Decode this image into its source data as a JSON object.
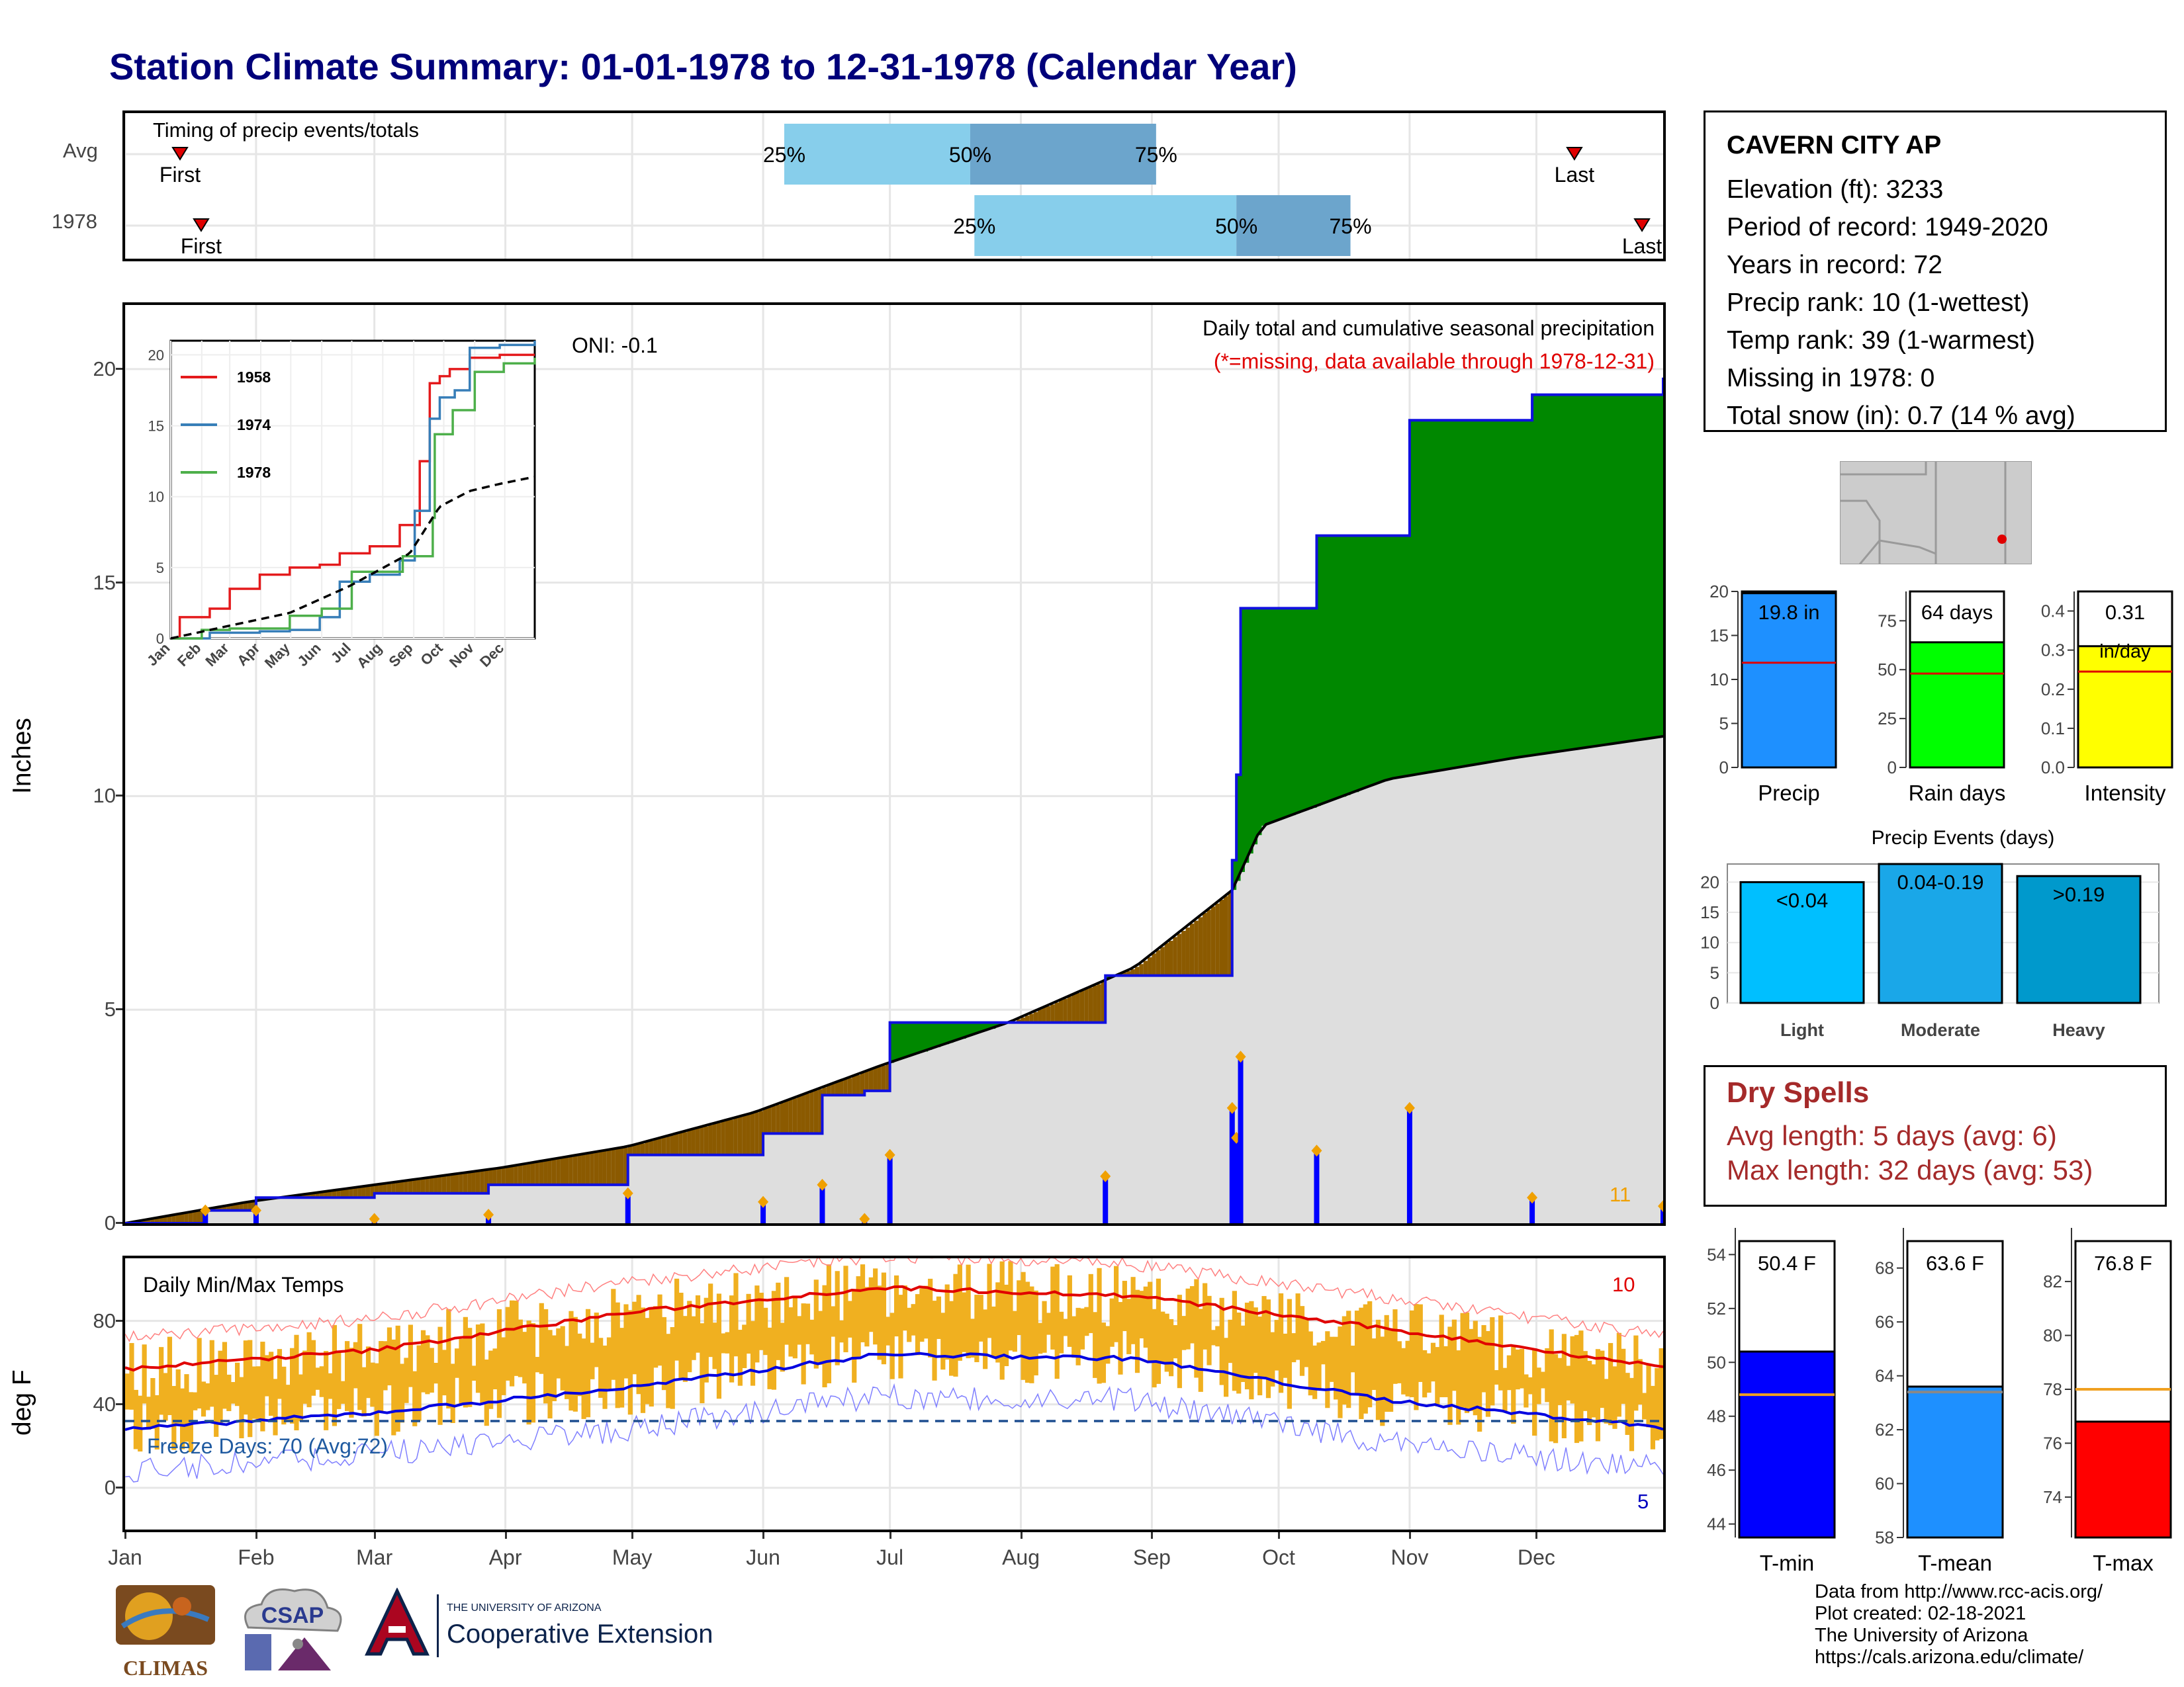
{
  "title": "Station Climate Summary: 01-01-1978 to 12-31-1978 (Calendar Year)",
  "timing_panel": {
    "label": "Timing of precip events/totals",
    "rows": [
      {
        "name": "Avg",
        "first_day": 14,
        "last_day": 344,
        "p25": 157,
        "p50": 201,
        "p75": 245
      },
      {
        "name": "1978",
        "first_day": 19,
        "last_day": 360,
        "p25": 202,
        "p50": 264,
        "p75": 291
      }
    ],
    "first_label": "First",
    "last_label": "Last",
    "pct_labels": [
      "25%",
      "50%",
      "75%"
    ]
  },
  "station_info": {
    "name": "CAVERN CITY AP",
    "lines": [
      "Elevation (ft): 3233",
      "Period of record: 1949-2020",
      "Years in record: 72",
      "Precip rank: 10 (1-wettest)",
      "Temp rank: 39 (1-warmest)",
      "Missing in 1978: 0",
      "Total snow (in): 0.7 (14 % avg)"
    ]
  },
  "precip_panel": {
    "ylabel": "Inches",
    "title_line1": "Daily total and cumulative seasonal precipitation",
    "title_line2": "(*=missing, data available through 1978-12-31)",
    "oni": "ONI: -0.1",
    "count_label": "11",
    "yticks": [
      0,
      5,
      10,
      15,
      20
    ]
  },
  "inset": {
    "legend": [
      "1958",
      "1974",
      "1978"
    ],
    "yticks": [
      0,
      5,
      10,
      15,
      20
    ],
    "months": [
      "Jan",
      "Feb",
      "Mar",
      "Apr",
      "May",
      "Jun",
      "Jul",
      "Aug",
      "Sep",
      "Oct",
      "Nov",
      "Dec"
    ]
  },
  "temp_panel": {
    "ylabel": "deg F",
    "label": "Daily Min/Max Temps",
    "freeze_label": "Freeze Days: 70 (Avg:72)",
    "max_count": "10",
    "min_count": "5",
    "yticks": [
      0,
      40,
      80
    ]
  },
  "months": [
    "Jan",
    "Feb",
    "Mar",
    "Apr",
    "May",
    "Jun",
    "Jul",
    "Aug",
    "Sep",
    "Oct",
    "Nov",
    "Dec"
  ],
  "mini_precip": {
    "labels": [
      "Precip",
      "Rain days",
      "Intensity"
    ],
    "values": [
      "19.8 in",
      "64 days",
      "0.31"
    ],
    "unit3": "in/day",
    "colors": [
      "#1e90ff",
      "#00ff00",
      "#ffff00"
    ]
  },
  "precip_events": {
    "title": "Precip Events (days)",
    "categories": [
      "Light",
      "Moderate",
      "Heavy"
    ],
    "bar_labels": [
      "<0.04",
      "0.04-0.19",
      ">0.19"
    ],
    "values": [
      20,
      23,
      21
    ]
  },
  "dry_spells": {
    "title": "Dry Spells",
    "line1": "Avg length: 5 days (avg: 6)",
    "line2": "Max length: 32 days (avg: 53)"
  },
  "temp_bars": {
    "labels": [
      "T-min",
      "T-mean",
      "T-max"
    ],
    "values": [
      "50.4 F",
      "63.6 F",
      "76.8 F"
    ]
  },
  "logos": {
    "climas": "CLIMAS",
    "csap": "CSAP",
    "ua_top": "THE UNIVERSITY OF ARIZONA",
    "ua_main": "Cooperative Extension"
  },
  "footer": [
    "Data from http://www.rcc-acis.org/",
    "Plot created: 02-18-2021",
    "The University of Arizona",
    "https://cals.arizona.edu/climate/"
  ],
  "chart_data": [
    {
      "type": "area",
      "title": "Daily total and cumulative seasonal precipitation",
      "ylabel": "Inches",
      "ylim": [
        0,
        21.5
      ],
      "series": [
        {
          "name": "1978 cumulative",
          "x": [
            1,
            20,
            32,
            60,
            87,
            120,
            152,
            166,
            176,
            182,
            211,
            233,
            263,
            264,
            265,
            278,
            283,
            305,
            334,
            365
          ],
          "values": [
            0,
            0.3,
            0.6,
            0.7,
            0.9,
            1.6,
            2.1,
            3.0,
            3.1,
            4.7,
            4.7,
            5.8,
            8.5,
            10.5,
            14.4,
            14.4,
            16.1,
            18.8,
            19.4,
            19.8
          ]
        },
        {
          "name": "Average cumulative",
          "x": [
            1,
            30,
            60,
            90,
            120,
            150,
            180,
            210,
            240,
            263,
            270,
            300,
            330,
            365
          ],
          "values": [
            0,
            0.5,
            0.9,
            1.3,
            1.8,
            2.6,
            3.7,
            4.7,
            6.0,
            7.8,
            9.3,
            10.4,
            10.9,
            11.4
          ]
        }
      ]
    },
    {
      "type": "line",
      "title": "Inset cumulative precipitation",
      "ylim": [
        0,
        21
      ],
      "series": [
        {
          "name": "1958",
          "x": [
            1,
            10,
            40,
            60,
            90,
            120,
            150,
            170,
            200,
            230,
            250,
            260,
            270,
            280,
            300,
            330,
            365
          ],
          "values": [
            0,
            1.5,
            2.1,
            3.5,
            4.5,
            5.0,
            5.2,
            6.0,
            6.5,
            8.0,
            12.5,
            18.0,
            18.5,
            19.0,
            19.8,
            20.0,
            20.0
          ]
        },
        {
          "name": "1974",
          "x": [
            1,
            40,
            90,
            120,
            150,
            170,
            200,
            230,
            245,
            260,
            270,
            285,
            300,
            330,
            365
          ],
          "values": [
            0,
            0.4,
            0.5,
            0.6,
            1.5,
            4.0,
            4.5,
            5.5,
            9.0,
            15.5,
            17.0,
            17.5,
            20.5,
            20.7,
            21.0
          ]
        },
        {
          "name": "1978",
          "x": [
            1,
            32,
            60,
            120,
            152,
            182,
            211,
            233,
            263,
            265,
            283,
            305,
            334,
            365
          ],
          "values": [
            0,
            0.6,
            0.7,
            1.6,
            2.1,
            4.7,
            4.7,
            5.8,
            8.5,
            14.4,
            16.1,
            18.8,
            19.4,
            19.8
          ]
        },
        {
          "name": "Average",
          "x": [
            1,
            60,
            120,
            180,
            240,
            270,
            300,
            330,
            365
          ],
          "values": [
            0,
            0.9,
            1.8,
            3.7,
            6.0,
            9.3,
            10.4,
            10.9,
            11.4
          ]
        }
      ]
    },
    {
      "type": "bar",
      "title": "Daily Min/Max Temps",
      "ylabel": "deg F",
      "ylim": [
        -20,
        110
      ],
      "series": [
        {
          "name": "Avg max",
          "x": [
            1,
            60,
            120,
            180,
            240,
            300,
            365
          ],
          "values": [
            57,
            66,
            84,
            96,
            92,
            76,
            58
          ]
        },
        {
          "name": "Avg min",
          "x": [
            1,
            60,
            120,
            180,
            240,
            300,
            365
          ],
          "values": [
            28,
            36,
            48,
            64,
            62,
            42,
            29
          ]
        }
      ]
    },
    {
      "type": "bar",
      "title": "Precip Events (days)",
      "categories": [
        "Light",
        "Moderate",
        "Heavy"
      ],
      "values": [
        20,
        23,
        21
      ],
      "ylim": [
        0,
        23
      ]
    }
  ]
}
